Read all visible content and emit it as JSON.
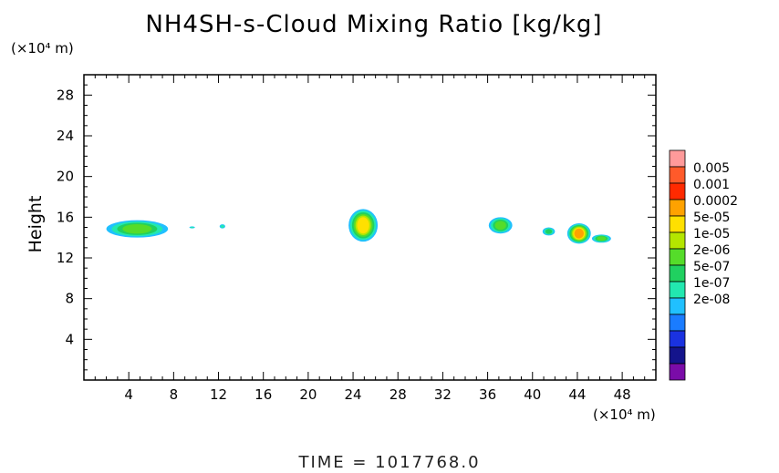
{
  "title": "NH4SH-s-Cloud Mixing Ratio [kg/kg]",
  "y_unit": "(×10⁴ m)",
  "x_unit": "(×10⁴ m)",
  "ylabel": "Height",
  "time_label": "TIME  =  1017768.0",
  "chart_data": {
    "type": "heatmap",
    "title": "NH4SH-s-Cloud Mixing Ratio [kg/kg]",
    "xlabel": "",
    "ylabel": "Height",
    "x_unit": "(×10^4 m)",
    "y_unit": "(×10^4 m)",
    "xlim": [
      0,
      51
    ],
    "ylim": [
      0,
      30
    ],
    "x_ticks": [
      4,
      8,
      12,
      16,
      20,
      24,
      28,
      32,
      36,
      40,
      44,
      48
    ],
    "y_ticks": [
      4,
      8,
      12,
      16,
      20,
      24,
      28
    ],
    "colorbar": {
      "levels": [
        "0.005",
        "0.001",
        "0.0002",
        "5e-05",
        "1e-05",
        "2e-06",
        "5e-07",
        "1e-07",
        "2e-08"
      ],
      "colors": [
        "#ff9a9a",
        "#ff5a2a",
        "#ff2a00",
        "#ffa200",
        "#ffe000",
        "#b4e600",
        "#55dc2a",
        "#20d060",
        "#22e8b0",
        "#20c0ff",
        "#1a7cff",
        "#1a32e0",
        "#14148c",
        "#7a0ca8"
      ]
    },
    "regions": [
      {
        "x": [
          2,
          7.5
        ],
        "y": [
          14,
          15.7
        ],
        "max_level": "2e-06"
      },
      {
        "x": [
          9.4,
          9.9
        ],
        "y": [
          14.9,
          15.1
        ],
        "max_level": "1e-07"
      },
      {
        "x": [
          12.1,
          12.6
        ],
        "y": [
          14.9,
          15.3
        ],
        "max_level": "1e-07"
      },
      {
        "x": [
          23.6,
          26.2
        ],
        "y": [
          13.6,
          16.8
        ],
        "max_level": "5e-05"
      },
      {
        "x": [
          36.1,
          38.2
        ],
        "y": [
          14.4,
          16.0
        ],
        "max_level": "2e-06"
      },
      {
        "x": [
          40.9,
          42.0
        ],
        "y": [
          14.2,
          15.0
        ],
        "max_level": "5e-07"
      },
      {
        "x": [
          43.1,
          45.2
        ],
        "y": [
          13.4,
          15.4
        ],
        "max_level": "0.0002"
      },
      {
        "x": [
          45.3,
          47.0
        ],
        "y": [
          13.5,
          14.3
        ],
        "max_level": "2e-06"
      }
    ]
  }
}
